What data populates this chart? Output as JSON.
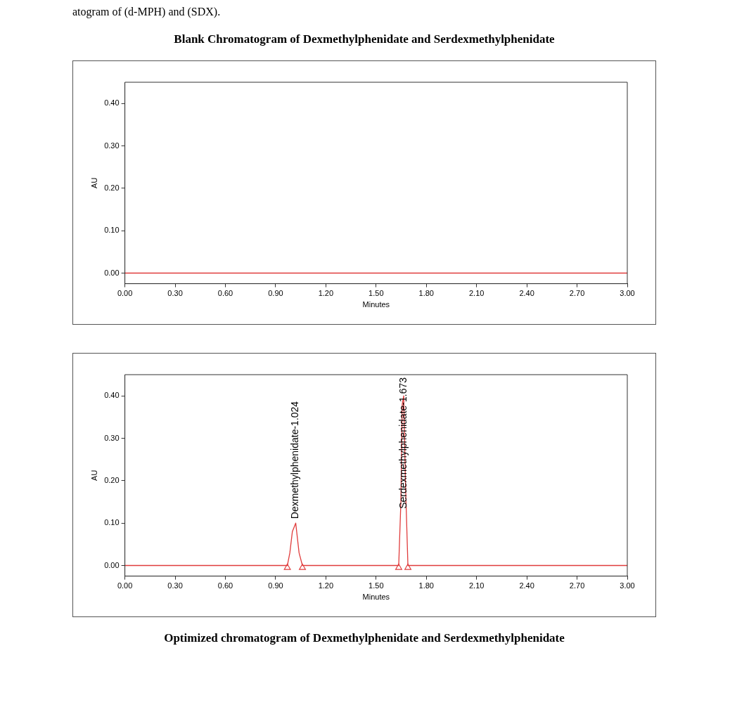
{
  "chart_data": [
    {
      "type": "line",
      "title": "Blank Chromatogram of Dexmethylphenidate and Serdexmethylphenidate",
      "xlabel": "Minutes",
      "ylabel": "AU",
      "annotations": [
        "atogram of (d-MPH) and (SDX)."
      ],
      "series": [
        {
          "color": "#e03c3c",
          "x": [
            0,
            3
          ],
          "values": [
            0,
            0
          ]
        }
      ],
      "xlim": [
        0,
        3
      ],
      "xticks": [
        {
          "value": 0,
          "label": "0.00"
        },
        {
          "value": 0.3,
          "label": "0.30"
        },
        {
          "value": 0.6,
          "label": "0.60"
        },
        {
          "value": 0.9,
          "label": "0.90"
        },
        {
          "value": 1.2,
          "label": "1.20"
        },
        {
          "value": 1.5,
          "label": "1.50"
        },
        {
          "value": 1.8,
          "label": "1.80"
        },
        {
          "value": 2.1,
          "label": "2.10"
        },
        {
          "value": 2.4,
          "label": "2.40"
        },
        {
          "value": 2.7,
          "label": "2.70"
        },
        {
          "value": 3,
          "label": "3.00"
        }
      ],
      "ylim": [
        -0.025,
        0.45
      ],
      "yticks": [
        {
          "value": 0,
          "label": "0.00"
        },
        {
          "value": 0.1,
          "label": "0.10"
        },
        {
          "value": 0.2,
          "label": "0.20"
        },
        {
          "value": 0.3,
          "label": "0.30"
        },
        {
          "value": 0.4,
          "label": "0.40"
        }
      ],
      "grid": false,
      "legend": false,
      "marker": "none"
    },
    {
      "type": "line",
      "title": "Optimized chromatogram of Dexmethylphenidate and Serdexmethylphenidate",
      "xlabel": "Minutes",
      "ylabel": "AU",
      "annotations": [
        {
          "text": "Dexmethylphenidate-1.024",
          "x": 1.02,
          "y": 0.1
        },
        {
          "text": "Serdexmethylphenidate-1.673",
          "x": 1.665,
          "y": 0.4
        }
      ],
      "series": [
        {
          "color": "#e03c3c",
          "x": [
            0,
            0.97,
            0.985,
            1.0,
            1.02,
            1.04,
            1.06,
            1.635,
            1.648,
            1.656,
            1.665,
            1.675,
            1.69,
            3
          ],
          "values": [
            0,
            0,
            0.03,
            0.08,
            0.1,
            0.03,
            0,
            0,
            0.15,
            0.38,
            0.4,
            0.2,
            0,
            0
          ]
        },
        {
          "type": "scatter",
          "marker": "triangle",
          "color": "#e03c3c",
          "x": [
            0.97,
            1.06,
            1.635,
            1.69
          ],
          "values": [
            -0.005,
            -0.005,
            -0.005,
            -0.005
          ]
        }
      ],
      "xlim": [
        0,
        3
      ],
      "xticks": [
        {
          "value": 0,
          "label": "0.00"
        },
        {
          "value": 0.3,
          "label": "0.30"
        },
        {
          "value": 0.6,
          "label": "0.60"
        },
        {
          "value": 0.9,
          "label": "0.90"
        },
        {
          "value": 1.2,
          "label": "1.20"
        },
        {
          "value": 1.5,
          "label": "1.50"
        },
        {
          "value": 1.8,
          "label": "1.80"
        },
        {
          "value": 2.1,
          "label": "2.10"
        },
        {
          "value": 2.4,
          "label": "2.40"
        },
        {
          "value": 2.7,
          "label": "2.70"
        },
        {
          "value": 3,
          "label": "3.00"
        }
      ],
      "ylim": [
        -0.025,
        0.45
      ],
      "yticks": [
        {
          "value": 0,
          "label": "0.00"
        },
        {
          "value": 0.1,
          "label": "0.10"
        },
        {
          "value": 0.2,
          "label": "0.20"
        },
        {
          "value": 0.3,
          "label": "0.30"
        },
        {
          "value": 0.4,
          "label": "0.40"
        }
      ],
      "grid": false,
      "legend": false,
      "marker": "none"
    }
  ]
}
